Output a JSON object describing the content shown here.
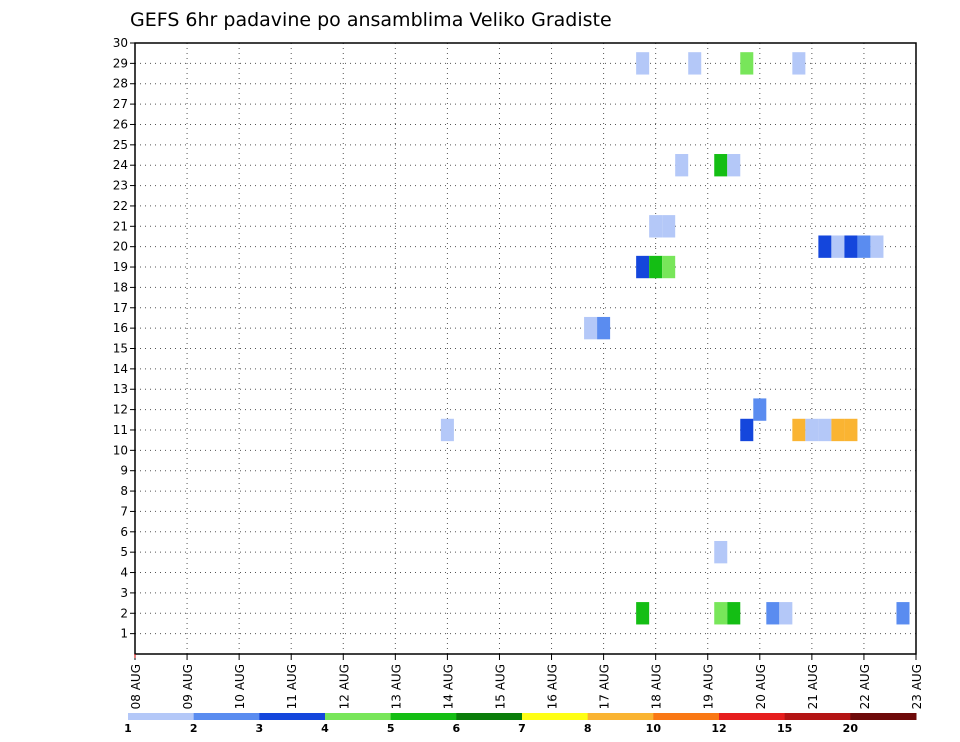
{
  "chart_data": {
    "type": "heatmap",
    "title": "GEFS 6hr padavine po ansamblima Veliko Gradiste",
    "xlabel": "",
    "ylabel": "",
    "x_ticks": [
      "08 AUG",
      "09 AUG",
      "10 AUG",
      "11 AUG",
      "12 AUG",
      "13 AUG",
      "14 AUG",
      "15 AUG",
      "16 AUG",
      "17 AUG",
      "18 AUG",
      "19 AUG",
      "20 AUG",
      "21 AUG",
      "22 AUG",
      "23 AUG"
    ],
    "x_range": [
      "08 AUG 00Z",
      "23 AUG 00Z"
    ],
    "x_step_hours": 6,
    "y_ticks": [
      1,
      2,
      3,
      4,
      5,
      6,
      7,
      8,
      9,
      10,
      11,
      12,
      13,
      14,
      15,
      16,
      17,
      18,
      19,
      20,
      21,
      22,
      23,
      24,
      25,
      26,
      27,
      28,
      29,
      30
    ],
    "ylim": [
      0,
      30
    ],
    "grid": true,
    "colorbar": {
      "colors": [
        "#b4c8f8",
        "#5a8cf0",
        "#1446dc",
        "#78e65a",
        "#14be14",
        "#0a7d0a",
        "#ffff14",
        "#fab432",
        "#fa7814",
        "#e61e1e",
        "#b41414",
        "#6e0a0a"
      ],
      "labels": [
        "1",
        "2",
        "3",
        "4",
        "5",
        "6",
        "7",
        "8",
        "10",
        "12",
        "15",
        "20"
      ]
    },
    "cells": [
      {
        "member": 29,
        "time": "17 AUG 18Z",
        "value": 1
      },
      {
        "member": 29,
        "time": "18 AUG 18Z",
        "value": 1
      },
      {
        "member": 29,
        "time": "19 AUG 18Z",
        "value": 4
      },
      {
        "member": 29,
        "time": "20 AUG 18Z",
        "value": 1
      },
      {
        "member": 24,
        "time": "18 AUG 12Z",
        "value": 1
      },
      {
        "member": 24,
        "time": "19 AUG 06Z",
        "value": 5
      },
      {
        "member": 24,
        "time": "19 AUG 12Z",
        "value": 1
      },
      {
        "member": 21,
        "time": "18 AUG 00Z",
        "value": 1
      },
      {
        "member": 21,
        "time": "18 AUG 06Z",
        "value": 1
      },
      {
        "member": 20,
        "time": "21 AUG 06Z",
        "value": 3
      },
      {
        "member": 20,
        "time": "21 AUG 12Z",
        "value": 1
      },
      {
        "member": 20,
        "time": "21 AUG 18Z",
        "value": 3
      },
      {
        "member": 20,
        "time": "22 AUG 00Z",
        "value": 2
      },
      {
        "member": 20,
        "time": "22 AUG 06Z",
        "value": 1
      },
      {
        "member": 19,
        "time": "17 AUG 18Z",
        "value": 3
      },
      {
        "member": 19,
        "time": "18 AUG 00Z",
        "value": 5
      },
      {
        "member": 19,
        "time": "18 AUG 06Z",
        "value": 4
      },
      {
        "member": 16,
        "time": "16 AUG 18Z",
        "value": 1
      },
      {
        "member": 16,
        "time": "17 AUG 00Z",
        "value": 2
      },
      {
        "member": 12,
        "time": "20 AUG 00Z",
        "value": 2
      },
      {
        "member": 11,
        "time": "14 AUG 00Z",
        "value": 1
      },
      {
        "member": 11,
        "time": "19 AUG 18Z",
        "value": 3
      },
      {
        "member": 11,
        "time": "20 AUG 18Z",
        "value": 8
      },
      {
        "member": 11,
        "time": "21 AUG 00Z",
        "value": 1
      },
      {
        "member": 11,
        "time": "21 AUG 06Z",
        "value": 1
      },
      {
        "member": 11,
        "time": "21 AUG 12Z",
        "value": 8
      },
      {
        "member": 11,
        "time": "21 AUG 18Z",
        "value": 8
      },
      {
        "member": 5,
        "time": "19 AUG 06Z",
        "value": 1
      },
      {
        "member": 2,
        "time": "17 AUG 18Z",
        "value": 5
      },
      {
        "member": 2,
        "time": "19 AUG 06Z",
        "value": 4
      },
      {
        "member": 2,
        "time": "19 AUG 12Z",
        "value": 5
      },
      {
        "member": 2,
        "time": "20 AUG 06Z",
        "value": 2
      },
      {
        "member": 2,
        "time": "20 AUG 12Z",
        "value": 1
      },
      {
        "member": 2,
        "time": "22 AUG 18Z",
        "value": 2
      }
    ]
  }
}
